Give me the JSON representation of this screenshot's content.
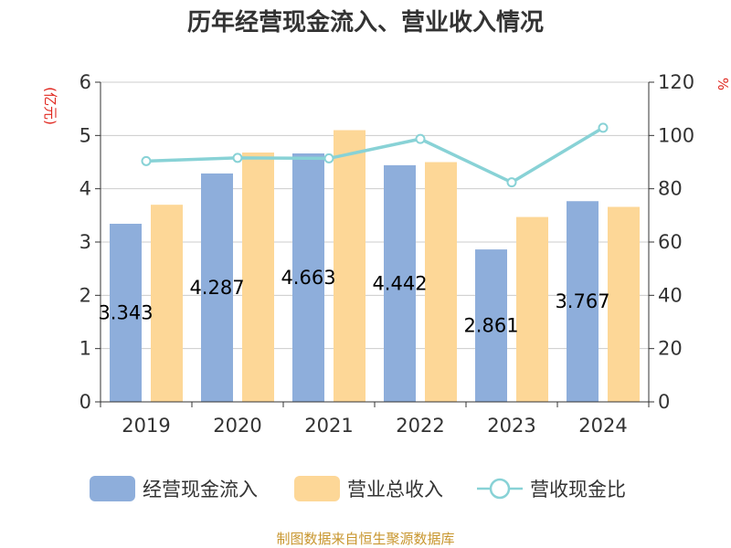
{
  "chart_data": {
    "type": "bar",
    "title": "历年经营现金流入、营业收入情况",
    "categories": [
      "2019",
      "2020",
      "2021",
      "2022",
      "2023",
      "2024"
    ],
    "series": [
      {
        "name": "经营现金流入",
        "type": "bar",
        "axis": "left",
        "color": "#8eaedb",
        "values": [
          3.343,
          4.287,
          4.663,
          4.442,
          2.861,
          3.767
        ],
        "show_labels": true
      },
      {
        "name": "营业总收入",
        "type": "bar",
        "axis": "left",
        "color": "#fdd797",
        "values": [
          3.7,
          4.68,
          5.1,
          4.5,
          3.47,
          3.66
        ],
        "show_labels": false
      },
      {
        "name": "营收现金比",
        "type": "line",
        "axis": "right",
        "color": "#88d2d6",
        "values": [
          90.4,
          91.6,
          91.4,
          98.7,
          82.4,
          102.9
        ],
        "show_labels": false
      }
    ],
    "y_left": {
      "unit": "(亿元)",
      "min": 0,
      "max": 6,
      "ticks": [
        "0",
        "1",
        "2",
        "3",
        "4",
        "5",
        "6"
      ]
    },
    "y_right": {
      "unit": "%",
      "min": 0,
      "max": 120,
      "ticks": [
        "0",
        "20",
        "40",
        "60",
        "80",
        "100",
        "120"
      ]
    },
    "grid": true,
    "legend": "bottom",
    "source": "制图数据来自恒生聚源数据库"
  }
}
